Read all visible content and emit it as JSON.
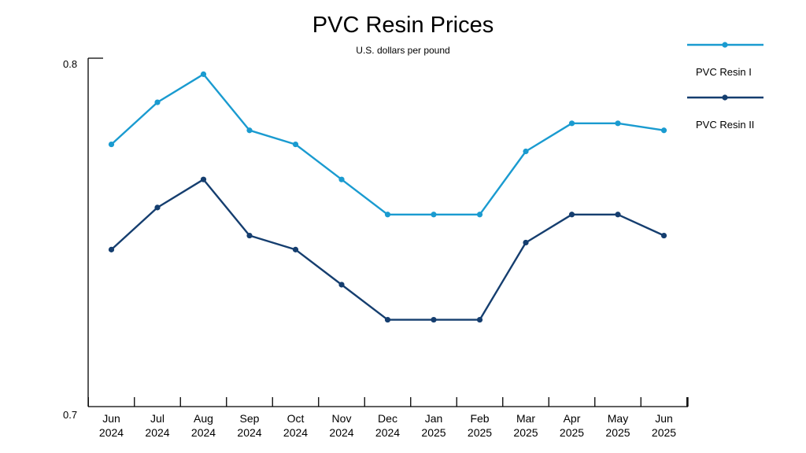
{
  "chart_data": {
    "type": "line",
    "title": "PVC Resin Prices",
    "subtitle": "U.S. dollars per pound",
    "xlabel": "",
    "ylabel": "",
    "ylim": [
      0.7,
      0.8
    ],
    "yticks": [
      "0.7",
      "0.8"
    ],
    "grid": false,
    "legend_position": "right",
    "categories": [
      [
        "Jun",
        "2024"
      ],
      [
        "Jul",
        "2024"
      ],
      [
        "Aug",
        "2024"
      ],
      [
        "Sep",
        "2024"
      ],
      [
        "Oct",
        "2024"
      ],
      [
        "Nov",
        "2024"
      ],
      [
        "Dec",
        "2024"
      ],
      [
        "Jan",
        "2025"
      ],
      [
        "Feb",
        "2025"
      ],
      [
        "Mar",
        "2025"
      ],
      [
        "Apr",
        "2025"
      ],
      [
        "May",
        "2025"
      ],
      [
        "Jun",
        "2025"
      ]
    ],
    "series": [
      {
        "name": "PVC Resin I",
        "color": "#1a9bd0",
        "values": [
          0.777,
          0.789,
          0.797,
          0.781,
          0.777,
          0.767,
          0.757,
          0.757,
          0.757,
          0.775,
          0.783,
          0.783,
          0.781
        ]
      },
      {
        "name": "PVC Resin II",
        "color": "#153e6f",
        "values": [
          0.747,
          0.759,
          0.767,
          0.751,
          0.747,
          0.737,
          0.727,
          0.727,
          0.727,
          0.749,
          0.757,
          0.757,
          0.751
        ]
      }
    ]
  }
}
